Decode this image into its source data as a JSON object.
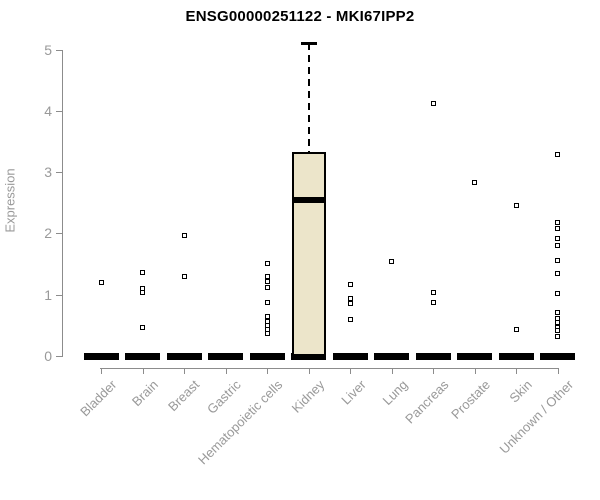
{
  "chart_data": {
    "type": "boxplot",
    "title": "ENSG00000251122 - MKI67IPP2",
    "ylabel": "Expression",
    "ylim": [
      0,
      5
    ],
    "yticks": [
      0,
      1,
      2,
      3,
      4,
      5
    ],
    "grid": false,
    "legend": false,
    "categories": [
      "Bladder",
      "Brain",
      "Breast",
      "Gastric",
      "Hematopoietic cells",
      "Kidney",
      "Liver",
      "Lung",
      "Pancreas",
      "Prostate",
      "Skin",
      "Unknown / Other"
    ],
    "boxes": [
      {
        "category": "Bladder",
        "q1": 0,
        "median": 0,
        "q3": 0,
        "whisker_low": 0,
        "whisker_high": 0,
        "outliers": [
          1.2
        ]
      },
      {
        "category": "Brain",
        "q1": 0,
        "median": 0,
        "q3": 0,
        "whisker_low": 0,
        "whisker_high": 0,
        "outliers": [
          1.37,
          1.1,
          1.03,
          0.47
        ]
      },
      {
        "category": "Breast",
        "q1": 0,
        "median": 0,
        "q3": 0,
        "whisker_low": 0,
        "whisker_high": 0,
        "outliers": [
          1.97,
          1.3
        ]
      },
      {
        "category": "Gastric",
        "q1": 0,
        "median": 0,
        "q3": 0,
        "whisker_low": 0,
        "whisker_high": 0,
        "outliers": []
      },
      {
        "category": "Hematopoietic cells",
        "q1": 0,
        "median": 0,
        "q3": 0,
        "whisker_low": 0,
        "whisker_high": 0,
        "outliers": [
          1.51,
          1.3,
          1.21,
          1.12,
          0.88,
          0.64,
          0.57,
          0.5,
          0.43,
          0.37
        ]
      },
      {
        "category": "Kidney",
        "q1": 0,
        "median": 2.55,
        "q3": 3.32,
        "whisker_low": 0,
        "whisker_high": 5.1,
        "outliers": []
      },
      {
        "category": "Liver",
        "q1": 0,
        "median": 0,
        "q3": 0,
        "whisker_low": 0,
        "whisker_high": 0,
        "outliers": [
          1.17,
          0.93,
          0.85,
          0.59
        ]
      },
      {
        "category": "Lung",
        "q1": 0,
        "median": 0,
        "q3": 0,
        "whisker_low": 0,
        "whisker_high": 0,
        "outliers": [
          1.54
        ]
      },
      {
        "category": "Pancreas",
        "q1": 0,
        "median": 0,
        "q3": 0,
        "whisker_low": 0,
        "whisker_high": 0,
        "outliers": [
          4.12,
          1.04,
          0.88
        ]
      },
      {
        "category": "Prostate",
        "q1": 0,
        "median": 0,
        "q3": 0,
        "whisker_low": 0,
        "whisker_high": 0,
        "outliers": [
          2.83
        ]
      },
      {
        "category": "Skin",
        "q1": 0,
        "median": 0,
        "q3": 0,
        "whisker_low": 0,
        "whisker_high": 0,
        "outliers": [
          2.46,
          0.44
        ]
      },
      {
        "category": "Unknown / Other",
        "q1": 0,
        "median": 0,
        "q3": 0,
        "whisker_low": 0,
        "whisker_high": 0,
        "outliers": [
          3.29,
          2.18,
          2.08,
          1.92,
          1.81,
          1.56,
          1.35,
          1.02,
          0.71,
          0.61,
          0.54,
          0.47,
          0.41,
          0.32
        ]
      }
    ],
    "colors": {
      "box_fill": "#ece5ca",
      "box_border": "#000000",
      "median": "#000000",
      "outlier": "#000000",
      "axis": "#8c8c8c",
      "tick_text": "#999999",
      "title_text": "#000000",
      "background": "#ffffff"
    }
  }
}
